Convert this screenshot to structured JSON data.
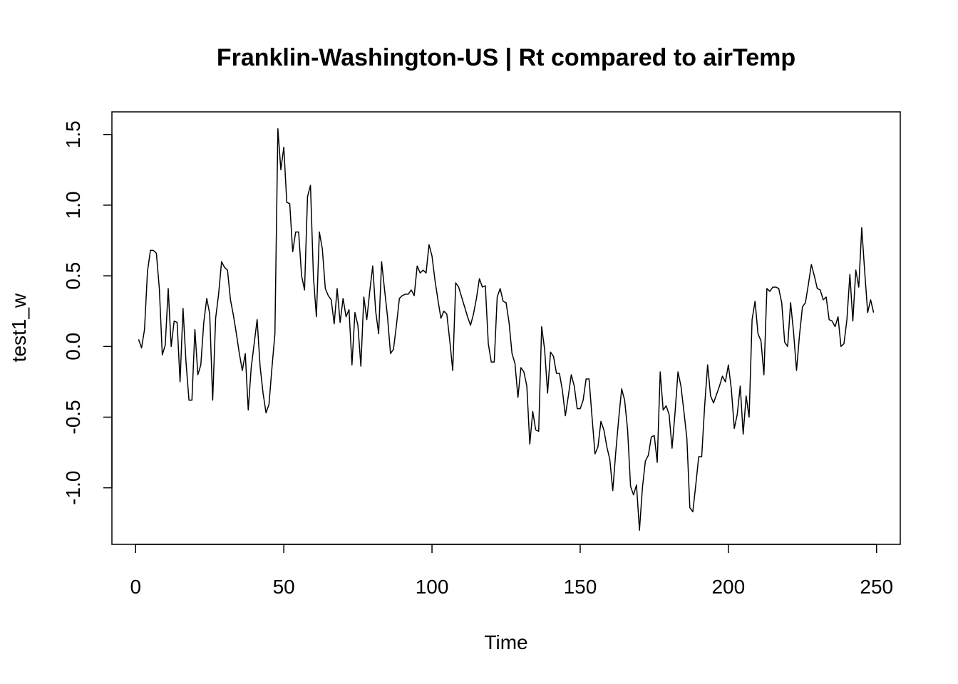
{
  "chart_data": {
    "type": "line",
    "title": "Franklin-Washington-US | Rt compared to airTemp",
    "xlabel": "Time",
    "ylabel": "test1_w",
    "xlim": [
      -8,
      258
    ],
    "ylim": [
      -1.4,
      1.66
    ],
    "x_ticks": [
      0,
      50,
      100,
      150,
      200,
      250
    ],
    "x_tick_labels": [
      "0",
      "50",
      "100",
      "150",
      "200",
      "250"
    ],
    "y_ticks": [
      -1.0,
      -0.5,
      0.0,
      0.5,
      1.0,
      1.5
    ],
    "y_tick_labels": [
      "-1.0",
      "-0.5",
      "0.0",
      "0.5",
      "1.0",
      "1.5"
    ],
    "grid": false,
    "series": [
      {
        "x_start": 1,
        "values": [
          0.05,
          -0.01,
          0.12,
          0.53,
          0.68,
          0.68,
          0.66,
          0.41,
          -0.06,
          0.01,
          0.41,
          0.0,
          0.18,
          0.17,
          -0.25,
          0.27,
          -0.11,
          -0.38,
          -0.38,
          0.12,
          -0.2,
          -0.13,
          0.17,
          0.34,
          0.23,
          -0.38,
          0.2,
          0.37,
          0.6,
          0.56,
          0.54,
          0.33,
          0.22,
          0.09,
          -0.05,
          -0.17,
          -0.05,
          -0.45,
          -0.15,
          0.02,
          0.19,
          -0.14,
          -0.33,
          -0.47,
          -0.41,
          -0.15,
          0.09,
          1.54,
          1.25,
          1.41,
          1.02,
          1.01,
          0.67,
          0.81,
          0.81,
          0.5,
          0.4,
          1.06,
          1.14,
          0.49,
          0.21,
          0.81,
          0.69,
          0.41,
          0.36,
          0.33,
          0.16,
          0.41,
          0.17,
          0.34,
          0.21,
          0.26,
          -0.13,
          0.24,
          0.15,
          -0.14,
          0.35,
          0.19,
          0.39,
          0.57,
          0.25,
          0.09,
          0.6,
          0.4,
          0.21,
          -0.05,
          -0.02,
          0.15,
          0.34,
          0.36,
          0.37,
          0.37,
          0.4,
          0.36,
          0.57,
          0.52,
          0.54,
          0.52,
          0.72,
          0.64,
          0.47,
          0.33,
          0.2,
          0.25,
          0.23,
          0.04,
          -0.17,
          0.45,
          0.42,
          0.35,
          0.28,
          0.21,
          0.15,
          0.23,
          0.34,
          0.48,
          0.42,
          0.43,
          0.02,
          -0.11,
          -0.11,
          0.35,
          0.41,
          0.32,
          0.31,
          0.17,
          -0.05,
          -0.12,
          -0.36,
          -0.15,
          -0.18,
          -0.28,
          -0.69,
          -0.46,
          -0.59,
          -0.6,
          0.14,
          -0.02,
          -0.33,
          -0.04,
          -0.07,
          -0.19,
          -0.19,
          -0.31,
          -0.49,
          -0.35,
          -0.2,
          -0.28,
          -0.44,
          -0.44,
          -0.38,
          -0.23,
          -0.23,
          -0.5,
          -0.76,
          -0.71,
          -0.53,
          -0.59,
          -0.71,
          -0.8,
          -1.02,
          -0.75,
          -0.51,
          -0.3,
          -0.38,
          -0.59,
          -0.99,
          -1.05,
          -0.98,
          -1.3,
          -1.0,
          -0.81,
          -0.77,
          -0.64,
          -0.63,
          -0.82,
          -0.18,
          -0.45,
          -0.42,
          -0.48,
          -0.72,
          -0.47,
          -0.18,
          -0.28,
          -0.46,
          -0.65,
          -1.14,
          -1.17,
          -0.98,
          -0.78,
          -0.78,
          -0.42,
          -0.13,
          -0.35,
          -0.4,
          -0.34,
          -0.28,
          -0.21,
          -0.25,
          -0.13,
          -0.3,
          -0.58,
          -0.48,
          -0.28,
          -0.62,
          -0.35,
          -0.5,
          0.19,
          0.32,
          0.09,
          0.04,
          -0.2,
          0.41,
          0.39,
          0.42,
          0.42,
          0.41,
          0.31,
          0.03,
          0.0,
          0.31,
          0.1,
          -0.17,
          0.08,
          0.28,
          0.31,
          0.44,
          0.58,
          0.5,
          0.41,
          0.4,
          0.33,
          0.35,
          0.19,
          0.18,
          0.14,
          0.21,
          0.0,
          0.02,
          0.19,
          0.51,
          0.18,
          0.54,
          0.42,
          0.84,
          0.53,
          0.24,
          0.33,
          0.24
        ]
      }
    ]
  }
}
